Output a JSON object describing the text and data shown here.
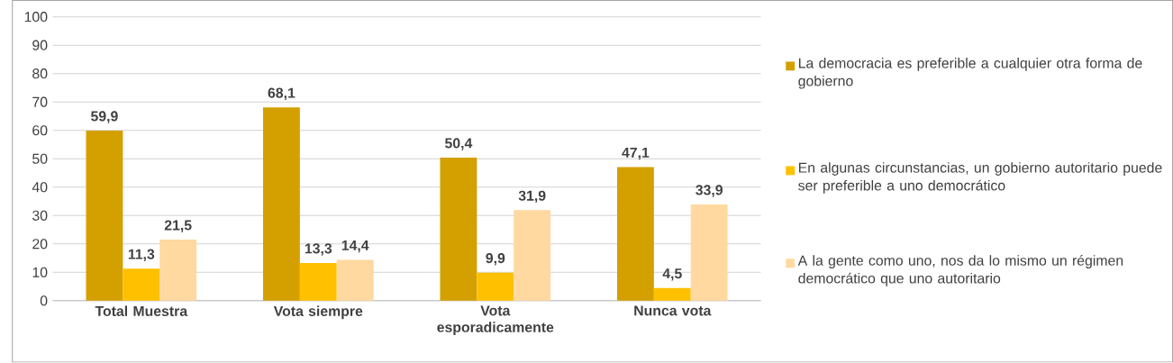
{
  "chart_data": {
    "type": "bar",
    "categories": [
      "Total Muestra",
      "Vota siempre",
      "Vota esporadicamente",
      "Nunca vota"
    ],
    "series": [
      {
        "name": "La democracia es preferible a cualquier otra forma de gobierno",
        "color": "#d4a000",
        "values": [
          59.9,
          68.1,
          50.4,
          47.1
        ],
        "value_labels": [
          "59,9",
          "68,1",
          "50,4",
          "47,1"
        ]
      },
      {
        "name": "En algunas circunstancias, un gobierno autoritario puede ser preferible a uno democrático",
        "color": "#ffc000",
        "values": [
          11.3,
          13.3,
          9.9,
          4.5
        ],
        "value_labels": [
          "11,3",
          "13,3",
          "9,9",
          "4,5"
        ]
      },
      {
        "name": "A la gente como uno, nos da lo mismo un régimen democrático que uno autoritario",
        "color": "#ffd9a0",
        "values": [
          21.5,
          14.4,
          31.9,
          33.9
        ],
        "value_labels": [
          "21,5",
          "14,4",
          "31,9",
          "33,9"
        ]
      }
    ],
    "ylim": [
      0,
      100
    ],
    "yticks": [
      0,
      10,
      20,
      30,
      40,
      50,
      60,
      70,
      80,
      90,
      100
    ],
    "grid": "y",
    "legend": "right"
  }
}
